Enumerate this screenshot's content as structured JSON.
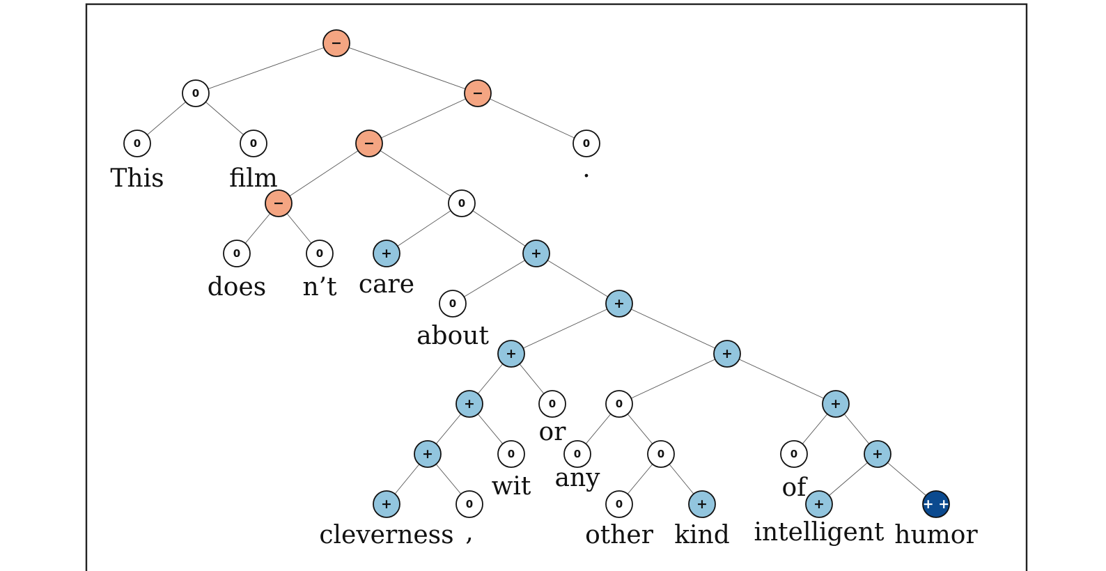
{
  "diagram": {
    "type": "sentiment-parse-tree",
    "colors": {
      "neutral": "#ffffff",
      "negative": "#f4a582",
      "positive": "#92c5de",
      "very_positive": "#0b4a8f",
      "outline": "#111111",
      "edge": "#555555"
    },
    "nodes": [
      {
        "id": "n1",
        "label": "−",
        "sentiment": "negative"
      },
      {
        "id": "n2",
        "label": "0",
        "sentiment": "neutral",
        "parent": "n1"
      },
      {
        "id": "n3",
        "label": "−",
        "sentiment": "negative",
        "parent": "n1"
      },
      {
        "id": "n4",
        "label": "0",
        "sentiment": "neutral",
        "parent": "n2",
        "word": "This"
      },
      {
        "id": "n5",
        "label": "0",
        "sentiment": "neutral",
        "parent": "n2",
        "word": "film"
      },
      {
        "id": "n6",
        "label": "−",
        "sentiment": "negative",
        "parent": "n3"
      },
      {
        "id": "n7",
        "label": "0",
        "sentiment": "neutral",
        "parent": "n3",
        "word": "."
      },
      {
        "id": "n8",
        "label": "−",
        "sentiment": "negative",
        "parent": "n6"
      },
      {
        "id": "n9",
        "label": "0",
        "sentiment": "neutral",
        "parent": "n6"
      },
      {
        "id": "n10",
        "label": "0",
        "sentiment": "neutral",
        "parent": "n8",
        "word": "does"
      },
      {
        "id": "n11",
        "label": "0",
        "sentiment": "neutral",
        "parent": "n8",
        "word": "n’t"
      },
      {
        "id": "n12",
        "label": "+",
        "sentiment": "positive",
        "parent": "n9",
        "word": "care"
      },
      {
        "id": "n13",
        "label": "+",
        "sentiment": "positive",
        "parent": "n9"
      },
      {
        "id": "n14",
        "label": "0",
        "sentiment": "neutral",
        "parent": "n13",
        "word": "about"
      },
      {
        "id": "n15",
        "label": "+",
        "sentiment": "positive",
        "parent": "n13"
      },
      {
        "id": "n16",
        "label": "+",
        "sentiment": "positive",
        "parent": "n15"
      },
      {
        "id": "n17",
        "label": "+",
        "sentiment": "positive",
        "parent": "n15"
      },
      {
        "id": "n18",
        "label": "+",
        "sentiment": "positive",
        "parent": "n16"
      },
      {
        "id": "n19",
        "label": "0",
        "sentiment": "neutral",
        "parent": "n16",
        "word": "or"
      },
      {
        "id": "n20",
        "label": "0",
        "sentiment": "neutral",
        "parent": "n17"
      },
      {
        "id": "n21",
        "label": "+",
        "sentiment": "positive",
        "parent": "n17"
      },
      {
        "id": "n22",
        "label": "+",
        "sentiment": "positive",
        "parent": "n18"
      },
      {
        "id": "n23",
        "label": "0",
        "sentiment": "neutral",
        "parent": "n18",
        "word": "wit"
      },
      {
        "id": "n24",
        "label": "0",
        "sentiment": "neutral",
        "parent": "n20",
        "word": "any"
      },
      {
        "id": "n25",
        "label": "0",
        "sentiment": "neutral",
        "parent": "n20"
      },
      {
        "id": "n26",
        "label": "0",
        "sentiment": "neutral",
        "parent": "n21",
        "word": "of"
      },
      {
        "id": "n27",
        "label": "+",
        "sentiment": "positive",
        "parent": "n21"
      },
      {
        "id": "n28",
        "label": "+",
        "sentiment": "positive",
        "parent": "n22",
        "word": "cleverness"
      },
      {
        "id": "n29",
        "label": "0",
        "sentiment": "neutral",
        "parent": "n22",
        "word": ","
      },
      {
        "id": "n30",
        "label": "0",
        "sentiment": "neutral",
        "parent": "n25",
        "word": "other"
      },
      {
        "id": "n31",
        "label": "+",
        "sentiment": "positive",
        "parent": "n25",
        "word": "kind"
      },
      {
        "id": "n32",
        "label": "+",
        "sentiment": "positive",
        "parent": "n27",
        "word": "intelligent"
      },
      {
        "id": "n33",
        "label": "+ +",
        "sentiment": "very_positive",
        "parent": "n27",
        "word": "humor"
      }
    ]
  }
}
